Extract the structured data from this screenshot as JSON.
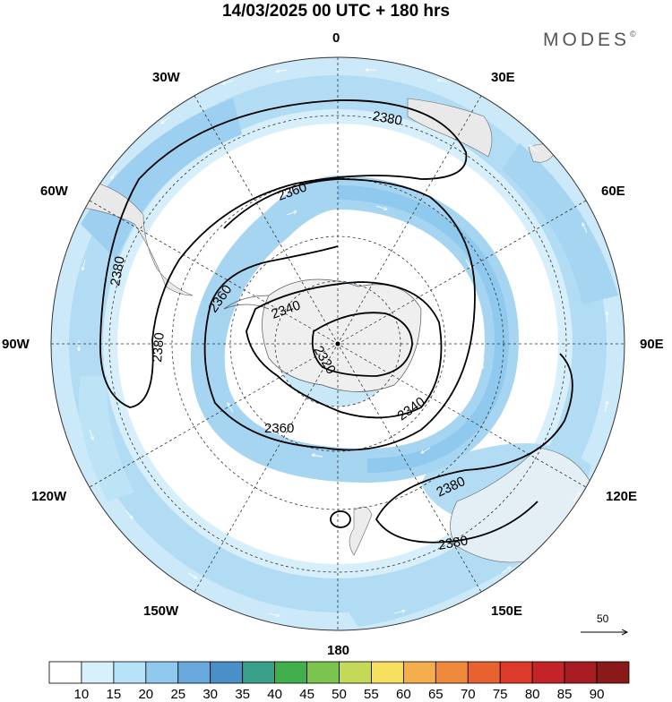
{
  "title": "14/03/2025  00 UTC  + 180 hrs",
  "brand": {
    "name": "MODES",
    "mark": "©"
  },
  "longitude_labels": {
    "top": "0",
    "bottom": "180",
    "upper_left_1": "30W",
    "upper_left_2": "60W",
    "left": "90W",
    "lower_left_1": "120W",
    "lower_left_2": "150W",
    "upper_right_1": "30E",
    "upper_right_2": "60E",
    "right": "90E",
    "lower_right_1": "120E",
    "lower_right_2": "150E"
  },
  "contours": [
    {
      "label": "2380"
    },
    {
      "label": "2380"
    },
    {
      "label": "2380"
    },
    {
      "label": "2380"
    },
    {
      "label": "2380"
    },
    {
      "label": "2360"
    },
    {
      "label": "2360"
    },
    {
      "label": "2360"
    },
    {
      "label": "2340"
    },
    {
      "label": "2340"
    },
    {
      "label": "2320"
    }
  ],
  "reference_vector": {
    "label": "50"
  },
  "colorbar": {
    "labels": [
      "10",
      "15",
      "20",
      "25",
      "30",
      "35",
      "40",
      "45",
      "50",
      "55",
      "60",
      "65",
      "70",
      "75",
      "80",
      "85",
      "90"
    ],
    "colors": [
      "#ffffff",
      "#d7f1fb",
      "#b7e2f7",
      "#8fc9ee",
      "#67a9dd",
      "#4b8fc8",
      "#3aa08a",
      "#41b04c",
      "#7bc44e",
      "#c3d957",
      "#f6df5e",
      "#f5ae4d",
      "#ef8a3d",
      "#e8622f",
      "#dc3b2c",
      "#c4232a",
      "#a61c22",
      "#8a1a1a"
    ]
  },
  "colors": {
    "jet_light": "#c8e8f8",
    "jet_mid": "#a9d6f2",
    "jet_strong": "#8cc4ea",
    "land": "#f0f0f0"
  }
}
